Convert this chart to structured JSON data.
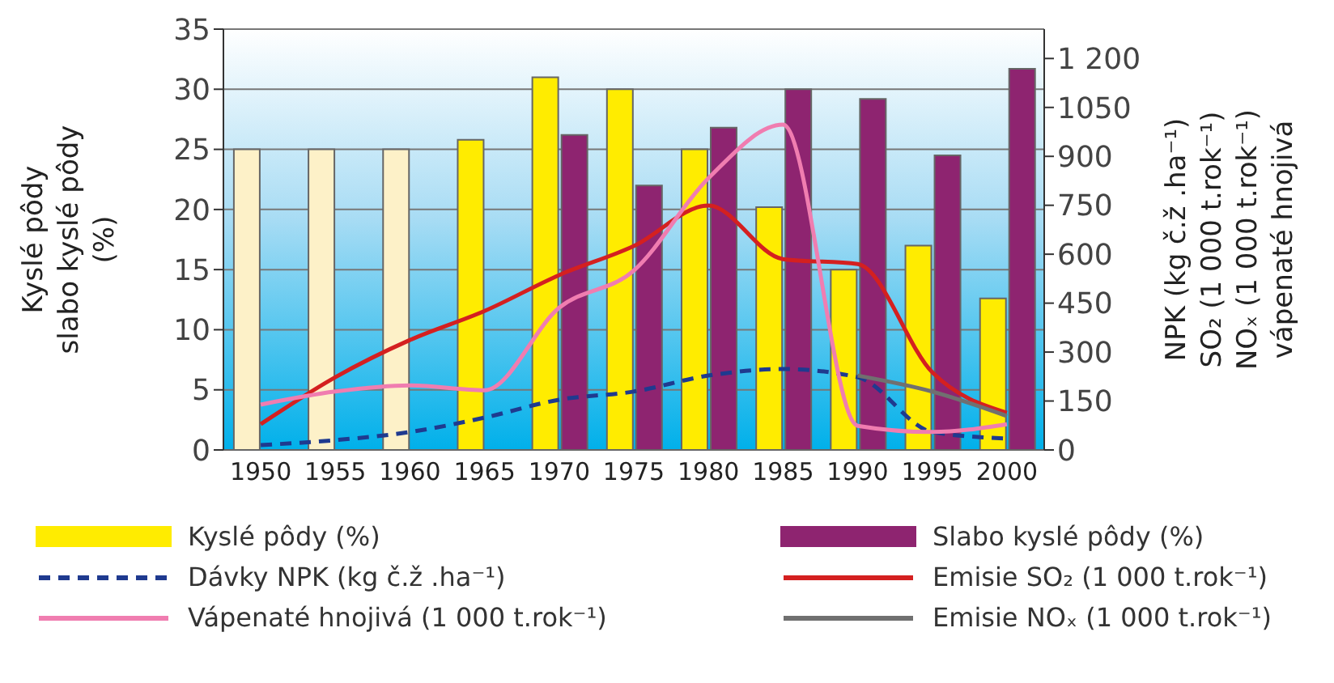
{
  "chart_data": {
    "type": "bar",
    "categories": [
      "1950",
      "1955",
      "1960",
      "1965",
      "1970",
      "1975",
      "1980",
      "1985",
      "1990",
      "1995",
      "2000"
    ],
    "ylabel": "Kyslé pôdy\nslabo kyslé pôdy\n(%)",
    "y2label": "NPK (kg č.ž .ha⁻¹)\nSO₂ (1 000 t.rok⁻¹)\nNOₓ (1 000 t.rok⁻¹)\nvápenaté hnojivá",
    "ylim": [
      0,
      35
    ],
    "yticks": [
      0,
      5,
      10,
      15,
      20,
      25,
      30,
      35
    ],
    "y2lim": [
      0,
      1290
    ],
    "y2ticks": [
      0,
      150,
      300,
      450,
      600,
      750,
      900,
      1050,
      {
        "value": 1200,
        "label": "1 200"
      }
    ],
    "grid": "y",
    "legend": "bottom",
    "series": [
      {
        "name": "Kyslé pôdy (%)",
        "color": "#ffec00",
        "colors": [
          "#fdf1c8",
          "#fdf1c8",
          "#fdf1c8",
          "#ffec00",
          "#ffec00",
          "#ffec00",
          "#ffec00",
          "#ffec00",
          "#ffec00",
          "#ffec00",
          "#ffec00"
        ],
        "values": [
          25,
          25,
          25,
          25.8,
          31,
          30,
          25,
          20.2,
          15,
          17,
          12.6
        ]
      },
      {
        "name": "Slabo kyslé pôdy (%)",
        "color": "#8e2470",
        "values": [
          null,
          null,
          null,
          null,
          26.2,
          22,
          26.8,
          30,
          29.2,
          24.5,
          31.7
        ]
      },
      {
        "name": "Dávky NPK (kg č.ž .ha⁻¹)",
        "type": "line",
        "axis": "y2",
        "color": "#1f3a8f",
        "line_style": "dashed",
        "values": [
          15,
          30,
          55,
          99,
          154,
          179,
          228,
          248,
          223,
          55,
          35
        ]
      },
      {
        "name": "Emisie SO₂ (1 000 t.rok⁻¹)",
        "type": "line",
        "axis": "y2",
        "color": "#d42020",
        "values": [
          79,
          223,
          337,
          426,
          536,
          625,
          749,
          585,
          570,
          238,
          114
        ]
      },
      {
        "name": "Vápenaté hnojivá (1 000 t.rok⁻¹)",
        "type": "line",
        "axis": "y2",
        "color": "#f07db0",
        "values": [
          139,
          179,
          198,
          183,
          436,
          550,
          833,
          997,
          74,
          55,
          79
        ]
      },
      {
        "name": "Emisie NOₓ (1 000 t.rok⁻¹)",
        "type": "line",
        "axis": "y2",
        "color": "#707070",
        "values": [
          null,
          null,
          null,
          null,
          null,
          null,
          null,
          null,
          228,
          179,
          104
        ]
      }
    ]
  }
}
